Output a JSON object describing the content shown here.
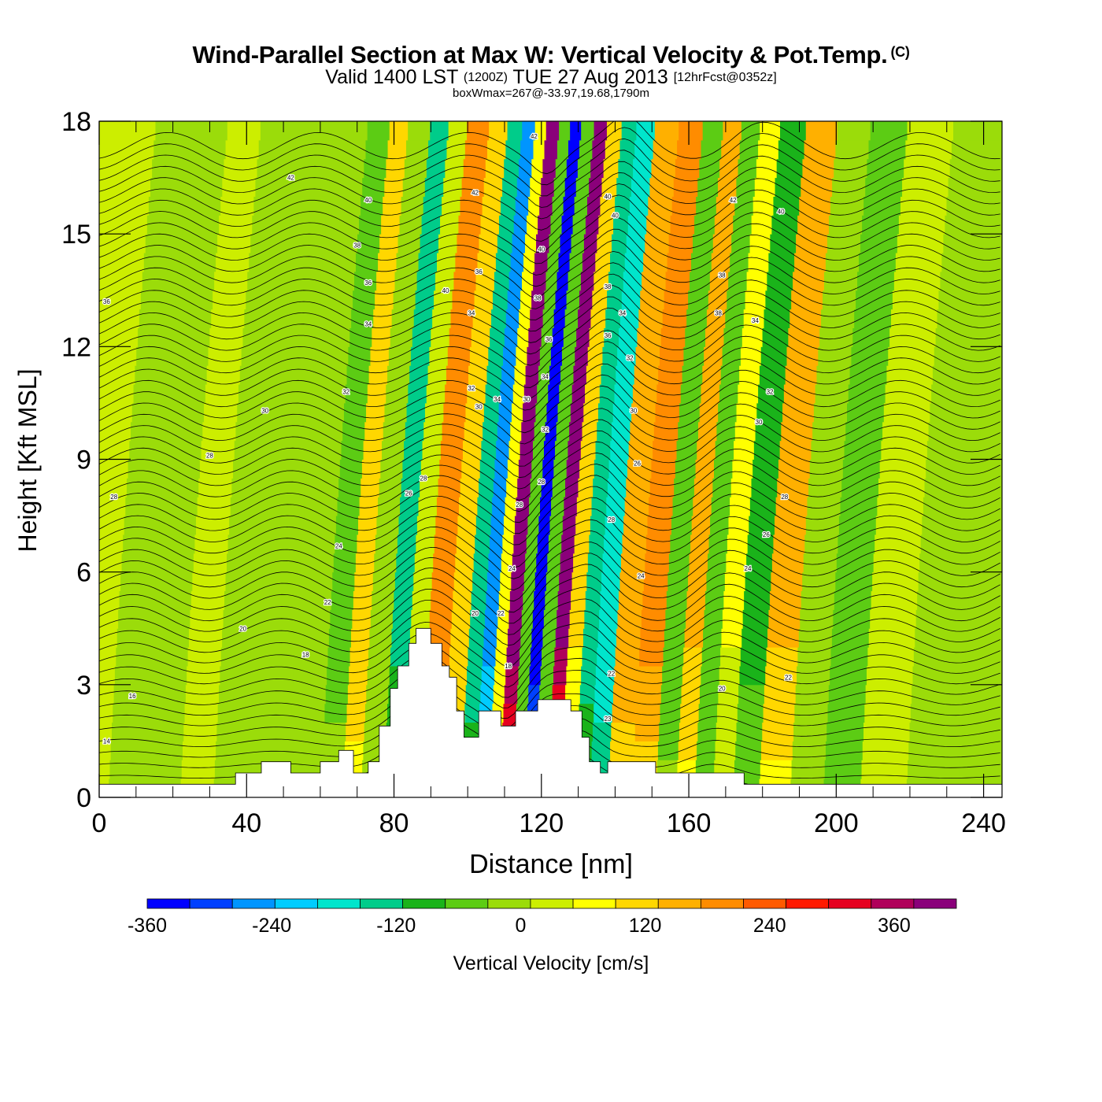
{
  "titles": {
    "main": "Wind-Parallel Section at Max W: Vertical Velocity & Pot.Temp.",
    "main_tag": "(C)",
    "valid_prefix": "Valid 1400 LST",
    "valid_utc": "(1200Z)",
    "valid_date": "TUE 27 Aug 2013",
    "forecast": "[12hrFcst@0352z]",
    "box_info": "boxWmax=267@-33.97,19.68,1790m"
  },
  "chart_data": {
    "type": "heatmap",
    "xlabel": "Distance [nm]",
    "ylabel": "Height [Kft MSL]",
    "xlim": [
      0,
      245
    ],
    "ylim": [
      0,
      18
    ],
    "x_ticks": [
      0,
      40,
      80,
      120,
      160,
      200,
      240
    ],
    "y_ticks": [
      0,
      3,
      6,
      9,
      12,
      15,
      18
    ],
    "colorbar": {
      "label": "Vertical Velocity [cm/s]",
      "range": [
        -360,
        420
      ],
      "step": 40,
      "tick_values": [
        -360,
        -240,
        -120,
        0,
        120,
        240,
        360
      ],
      "colors": [
        "#0000ff",
        "#0040ff",
        "#0095ff",
        "#00ccff",
        "#00e5cc",
        "#00cc8a",
        "#1ab31a",
        "#5ccc14",
        "#9bdc0a",
        "#ccee00",
        "#ffff00",
        "#ffd700",
        "#ffb000",
        "#ff8c00",
        "#ff5a00",
        "#ff1a00",
        "#e60020",
        "#b0005a",
        "#8a007a"
      ]
    },
    "velocity_columns": [
      {
        "x": 3,
        "w": 0
      },
      {
        "x": 10,
        "w": -20
      },
      {
        "x": 22,
        "w": -30
      },
      {
        "x": 30,
        "w": 10
      },
      {
        "x": 40,
        "w": -40
      },
      {
        "x": 50,
        "w": -10
      },
      {
        "x": 60,
        "w": -30
      },
      {
        "x": 68,
        "w": -50
      },
      {
        "x": 72,
        "w": 110
      },
      {
        "x": 78,
        "w": -40
      },
      {
        "x": 84,
        "w": -130
      },
      {
        "x": 88,
        "w": 30
      },
      {
        "x": 94,
        "w": 190
      },
      {
        "x": 100,
        "w": 100
      },
      {
        "x": 104,
        "w": -150
      },
      {
        "x": 108,
        "w": -250
      },
      {
        "x": 111,
        "w": 60
      },
      {
        "x": 114,
        "w": 380
      },
      {
        "x": 118,
        "w": -60
      },
      {
        "x": 120,
        "w": -360
      },
      {
        "x": 124,
        "w": -80
      },
      {
        "x": 127,
        "w": 370
      },
      {
        "x": 131,
        "w": 80
      },
      {
        "x": 135,
        "w": -140
      },
      {
        "x": 139,
        "w": -200
      },
      {
        "x": 145,
        "w": 150
      },
      {
        "x": 152,
        "w": 170
      },
      {
        "x": 158,
        "w": -60
      },
      {
        "x": 163,
        "w": 120
      },
      {
        "x": 168,
        "w": -80
      },
      {
        "x": 173,
        "w": 40
      },
      {
        "x": 179,
        "w": -90
      },
      {
        "x": 187,
        "w": 120
      },
      {
        "x": 196,
        "w": -10
      },
      {
        "x": 205,
        "w": -70
      },
      {
        "x": 216,
        "w": 0
      },
      {
        "x": 230,
        "w": -40
      },
      {
        "x": 244,
        "w": -20
      }
    ],
    "theta_contour_labels": [
      {
        "x": 2,
        "y": 13.2,
        "v": "36"
      },
      {
        "x": 4,
        "y": 8.0,
        "v": "28"
      },
      {
        "x": 9,
        "y": 2.7,
        "v": "16"
      },
      {
        "x": 2,
        "y": 1.5,
        "v": "14"
      },
      {
        "x": 30,
        "y": 9.1,
        "v": "28"
      },
      {
        "x": 39,
        "y": 4.5,
        "v": "20"
      },
      {
        "x": 45,
        "y": 10.3,
        "v": "30"
      },
      {
        "x": 52,
        "y": 16.5,
        "v": "42"
      },
      {
        "x": 56,
        "y": 3.8,
        "v": "18"
      },
      {
        "x": 62,
        "y": 5.2,
        "v": "22"
      },
      {
        "x": 65,
        "y": 6.7,
        "v": "24"
      },
      {
        "x": 67,
        "y": 10.8,
        "v": "32"
      },
      {
        "x": 70,
        "y": 14.7,
        "v": "38"
      },
      {
        "x": 73,
        "y": 13.7,
        "v": "36"
      },
      {
        "x": 73,
        "y": 12.6,
        "v": "34"
      },
      {
        "x": 73,
        "y": 15.9,
        "v": "40"
      },
      {
        "x": 84,
        "y": 8.1,
        "v": "26"
      },
      {
        "x": 88,
        "y": 8.5,
        "v": "28"
      },
      {
        "x": 94,
        "y": 13.5,
        "v": "40"
      },
      {
        "x": 102,
        "y": 4.9,
        "v": "20"
      },
      {
        "x": 101,
        "y": 10.9,
        "v": "32"
      },
      {
        "x": 101,
        "y": 12.9,
        "v": "34"
      },
      {
        "x": 103,
        "y": 10.4,
        "v": "30"
      },
      {
        "x": 102,
        "y": 16.1,
        "v": "42"
      },
      {
        "x": 103,
        "y": 14.0,
        "v": "36"
      },
      {
        "x": 108,
        "y": 10.6,
        "v": "34"
      },
      {
        "x": 109,
        "y": 4.9,
        "v": "22"
      },
      {
        "x": 112,
        "y": 6.1,
        "v": "24"
      },
      {
        "x": 114,
        "y": 7.8,
        "v": "28"
      },
      {
        "x": 111,
        "y": 3.5,
        "v": "18"
      },
      {
        "x": 116,
        "y": 10.6,
        "v": "30"
      },
      {
        "x": 118,
        "y": 17.6,
        "v": "42"
      },
      {
        "x": 120,
        "y": 14.6,
        "v": "40"
      },
      {
        "x": 119,
        "y": 13.3,
        "v": "38"
      },
      {
        "x": 122,
        "y": 12.2,
        "v": "36"
      },
      {
        "x": 121,
        "y": 11.2,
        "v": "34"
      },
      {
        "x": 121,
        "y": 9.8,
        "v": "32"
      },
      {
        "x": 120,
        "y": 8.4,
        "v": "28"
      },
      {
        "x": 138,
        "y": 16.0,
        "v": "40"
      },
      {
        "x": 140,
        "y": 15.5,
        "v": "40"
      },
      {
        "x": 138,
        "y": 13.6,
        "v": "38"
      },
      {
        "x": 142,
        "y": 12.9,
        "v": "34"
      },
      {
        "x": 138,
        "y": 12.3,
        "v": "36"
      },
      {
        "x": 144,
        "y": 11.7,
        "v": "32"
      },
      {
        "x": 145,
        "y": 10.3,
        "v": "30"
      },
      {
        "x": 146,
        "y": 8.9,
        "v": "26"
      },
      {
        "x": 139,
        "y": 7.4,
        "v": "28"
      },
      {
        "x": 147,
        "y": 5.9,
        "v": "24"
      },
      {
        "x": 139,
        "y": 3.3,
        "v": "22"
      },
      {
        "x": 138,
        "y": 2.1,
        "v": "23"
      },
      {
        "x": 172,
        "y": 15.9,
        "v": "42"
      },
      {
        "x": 169,
        "y": 13.9,
        "v": "38"
      },
      {
        "x": 168,
        "y": 12.9,
        "v": "38"
      },
      {
        "x": 178,
        "y": 12.7,
        "v": "34"
      },
      {
        "x": 182,
        "y": 10.8,
        "v": "32"
      },
      {
        "x": 179,
        "y": 10.0,
        "v": "30"
      },
      {
        "x": 185,
        "y": 15.6,
        "v": "40"
      },
      {
        "x": 186,
        "y": 8.0,
        "v": "28"
      },
      {
        "x": 181,
        "y": 7.0,
        "v": "26"
      },
      {
        "x": 176,
        "y": 6.1,
        "v": "24"
      },
      {
        "x": 169,
        "y": 2.9,
        "v": "20"
      },
      {
        "x": 187,
        "y": 3.2,
        "v": "22"
      }
    ]
  }
}
